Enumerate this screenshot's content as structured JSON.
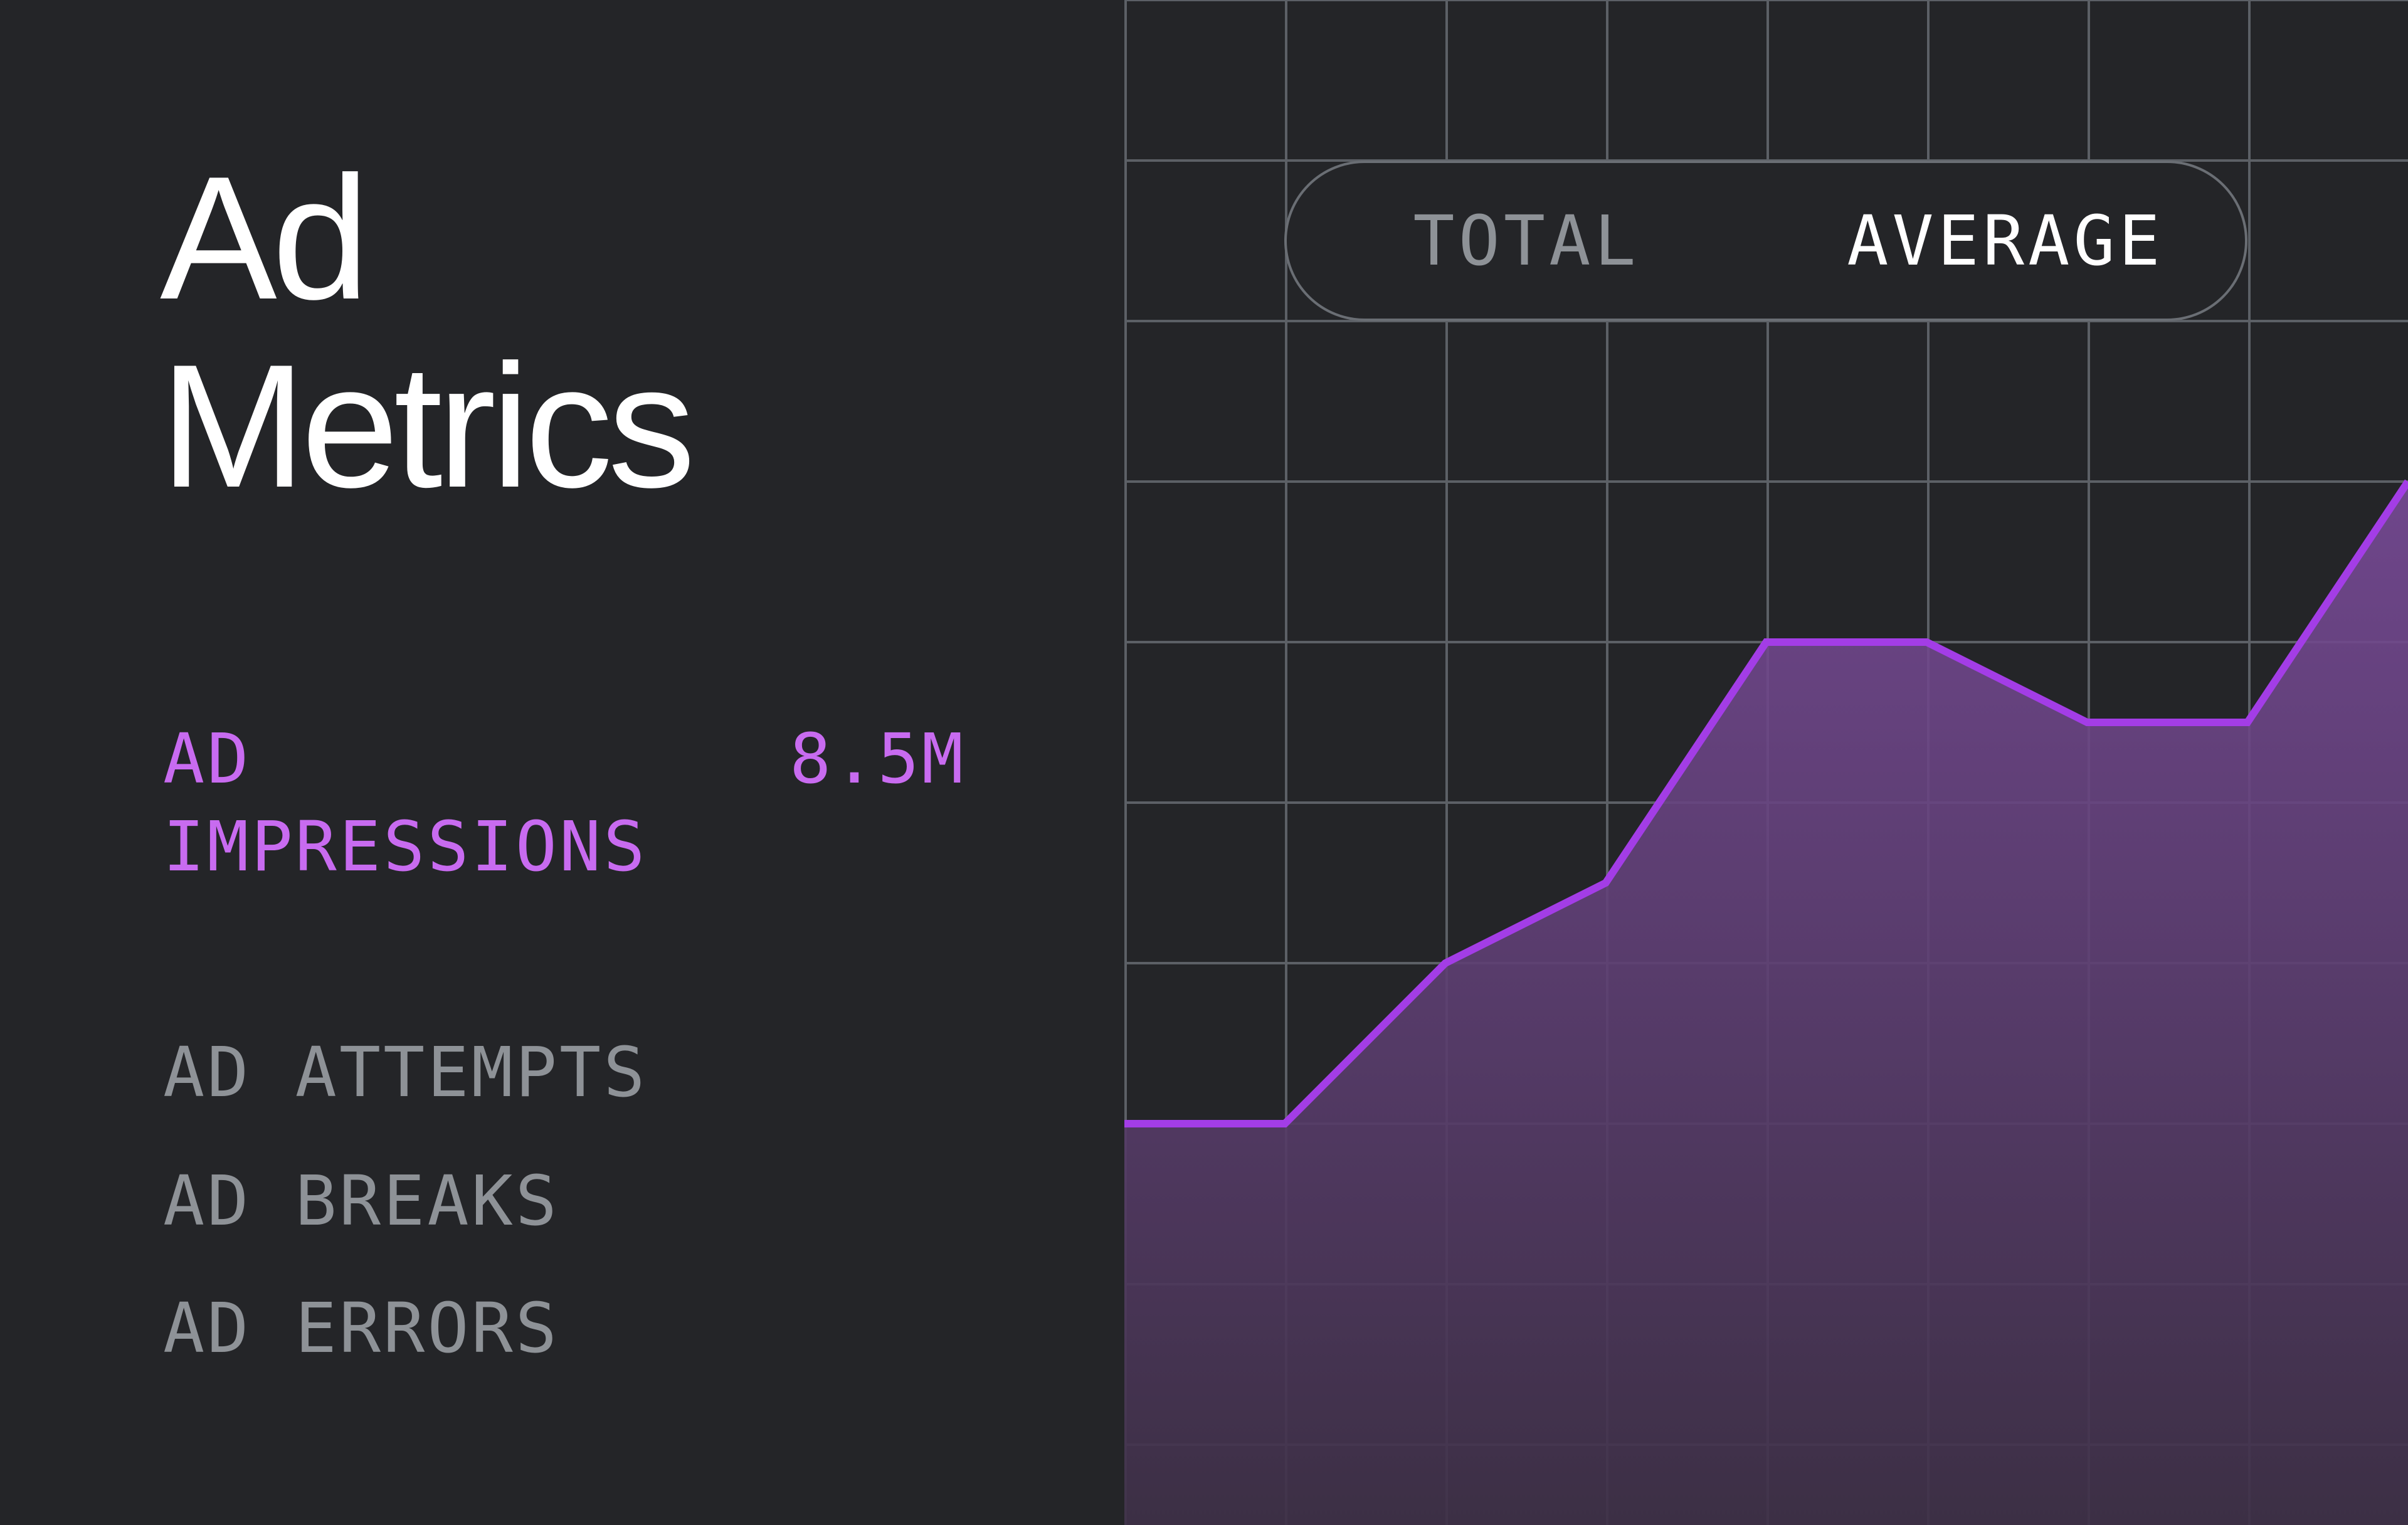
{
  "title": {
    "line1": "Ad",
    "line2": "Metrics"
  },
  "metrics": [
    {
      "label": "AD IMPRESSIONS",
      "value": "8.5M",
      "active": true
    },
    {
      "label": "AD ATTEMPTS",
      "active": false
    },
    {
      "label": "AD BREAKS",
      "active": false
    },
    {
      "label": "AD ERRORS",
      "active": false
    }
  ],
  "toggle": {
    "options": [
      "TOTAL",
      "AVERAGE"
    ],
    "selected": "AVERAGE"
  },
  "colors": {
    "background": "#242528",
    "accent": "#c86bf0",
    "line": "#a33de6",
    "grid": "#5c6066",
    "muted_text": "#8e9297"
  },
  "chart_data": {
    "type": "area",
    "x": [
      0,
      1,
      2,
      3,
      4,
      5,
      6,
      7,
      8
    ],
    "values": [
      2.5,
      2.5,
      3.5,
      4.0,
      5.5,
      5.5,
      5.0,
      5.0,
      6.5
    ],
    "ylim": [
      0,
      9.5
    ],
    "grid": true
  }
}
